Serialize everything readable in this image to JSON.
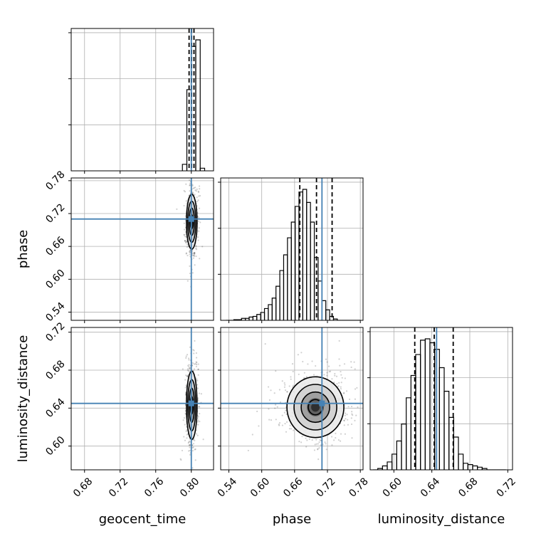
{
  "chart_data": {
    "type": "corner",
    "parameters": [
      "geocent_time",
      "phase",
      "luminosity_distance"
    ],
    "colors": {
      "truth": "#4682b4",
      "hist": "#000000",
      "grid": "#b0b0b0",
      "quantile": "#000000"
    },
    "truths": {
      "geocent_time": 0.8,
      "phase": 0.71,
      "luminosity_distance": 0.645
    },
    "axes": {
      "geocent_time": {
        "range": [
          0.665,
          0.825
        ],
        "ticks": [
          0.68,
          0.72,
          0.76,
          0.8
        ],
        "tick_labels": [
          "0.68",
          "0.72",
          "0.76",
          "0.80"
        ]
      },
      "phase": {
        "range": [
          0.525,
          0.785
        ],
        "ticks": [
          0.54,
          0.6,
          0.66,
          0.72,
          0.78
        ],
        "tick_labels": [
          "0.54",
          "0.60",
          "0.66",
          "0.72",
          "0.78"
        ]
      },
      "luminosity_distance": {
        "range": [
          0.575,
          0.725
        ],
        "ticks": [
          0.6,
          0.64,
          0.68,
          0.72
        ],
        "tick_labels": [
          "0.60",
          "0.64",
          "0.68",
          "0.72"
        ]
      }
    },
    "diagonal": [
      {
        "param": "geocent_time",
        "bins": [
          0.79,
          0.795,
          0.8,
          0.805,
          0.81
        ],
        "counts": [
          0.05,
          0.62,
          0.95,
          1.0,
          0.02
        ],
        "quantiles": [
          0.7975,
          0.8003,
          0.803
        ]
      },
      {
        "param": "phase",
        "bins": [
          0.535,
          0.542,
          0.549,
          0.556,
          0.563,
          0.57,
          0.577,
          0.584,
          0.591,
          0.598,
          0.605,
          0.612,
          0.619,
          0.626,
          0.633,
          0.64,
          0.647,
          0.654,
          0.661,
          0.668,
          0.675,
          0.682,
          0.689,
          0.696,
          0.703,
          0.71,
          0.717,
          0.724,
          0.731,
          0.738,
          0.745,
          0.752,
          0.759,
          0.766,
          0.773,
          0.78
        ],
        "counts": [
          0.0,
          0.0,
          0.005,
          0.005,
          0.015,
          0.015,
          0.025,
          0.03,
          0.045,
          0.06,
          0.09,
          0.12,
          0.17,
          0.26,
          0.38,
          0.5,
          0.63,
          0.75,
          0.87,
          0.98,
          1.0,
          0.9,
          0.75,
          0.48,
          0.3,
          0.15,
          0.08,
          0.03,
          0.01,
          0.0,
          0.0,
          0.0,
          0.0,
          0.0,
          0.0
        ],
        "quantiles": [
          0.6695,
          0.7,
          0.7285
        ]
      },
      {
        "param": "luminosity_distance",
        "bins": [
          0.578,
          0.583,
          0.588,
          0.593,
          0.598,
          0.603,
          0.608,
          0.613,
          0.618,
          0.623,
          0.628,
          0.633,
          0.638,
          0.643,
          0.648,
          0.653,
          0.658,
          0.663,
          0.668,
          0.673,
          0.678,
          0.683,
          0.688,
          0.693,
          0.698,
          0.703,
          0.708,
          0.713,
          0.718
        ],
        "counts": [
          0.0,
          0.01,
          0.03,
          0.06,
          0.12,
          0.22,
          0.35,
          0.55,
          0.72,
          0.88,
          0.99,
          1.0,
          0.97,
          0.92,
          0.78,
          0.6,
          0.4,
          0.25,
          0.12,
          0.05,
          0.04,
          0.03,
          0.02,
          0.01,
          0.0,
          0.0,
          0.0,
          0.0
        ],
        "quantiles": [
          0.622,
          0.6425,
          0.6625
        ]
      }
    ],
    "joint": [
      {
        "x": "geocent_time",
        "y": "phase",
        "center": [
          0.8005,
          0.705
        ],
        "sigma": [
          0.003,
          0.025
        ],
        "corr": 0.1
      },
      {
        "x": "geocent_time",
        "y": "luminosity_distance",
        "center": [
          0.8005,
          0.643
        ],
        "sigma": [
          0.003,
          0.018
        ],
        "corr": 0.0
      },
      {
        "x": "phase",
        "y": "luminosity_distance",
        "center": [
          0.698,
          0.641
        ],
        "sigma": [
          0.026,
          0.016
        ],
        "corr": 0.0
      }
    ]
  }
}
